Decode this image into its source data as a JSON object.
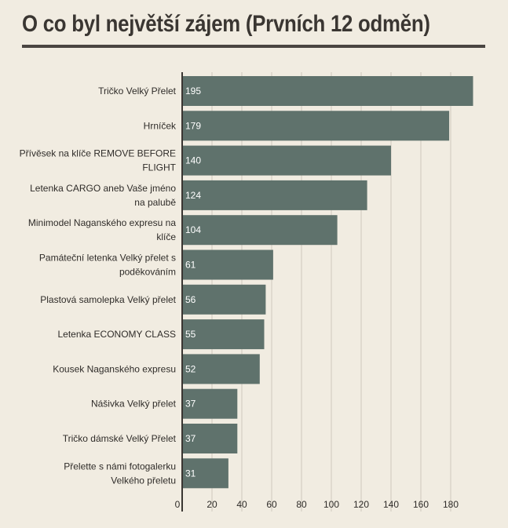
{
  "title": "O co byl největší zájem (Prvních 12 odměn)",
  "colors": {
    "bar": "#5f726c",
    "grid": "#cfc9bd",
    "axis": "#3a3632",
    "background": "#f1ece1"
  },
  "chart_data": {
    "type": "bar",
    "orientation": "horizontal",
    "title": "O co byl největší zájem (Prvních 12 odměn)",
    "categories": [
      "Tričko Velký Přelet",
      "Hrníček",
      "Přívěsek na klíče REMOVE BEFORE FLIGHT",
      "Letenka CARGO aneb Vaše jméno na palubě",
      "Minimodel Naganského expresu na klíče",
      "Památeční letenka Velký přelet s poděkováním",
      "Plastová samolepka Velký přelet",
      "Letenka ECONOMY CLASS",
      "Kousek Naganského expresu",
      "Nášivka Velký přelet",
      "Tričko dámské Velký Přelet",
      "Přelette s námi fotogalerku Velkého přeletu"
    ],
    "category_lines": [
      [
        "Tričko Velký Přelet"
      ],
      [
        "Hrníček"
      ],
      [
        "Přívěsek na klíče REMOVE BEFORE",
        "FLIGHT"
      ],
      [
        "Letenka CARGO aneb Vaše jméno",
        "na palubě"
      ],
      [
        "Minimodel Naganského expresu na",
        "klíče"
      ],
      [
        "Památeční letenka Velký přelet s",
        "poděkováním"
      ],
      [
        "Plastová samolepka Velký přelet"
      ],
      [
        "Letenka ECONOMY CLASS"
      ],
      [
        "Kousek Naganského expresu"
      ],
      [
        "Nášivka Velký přelet"
      ],
      [
        "Tričko dámské Velký Přelet"
      ],
      [
        "Přelette s námi fotogalerku",
        "Velkého přeletu"
      ]
    ],
    "values": [
      195,
      179,
      140,
      124,
      104,
      61,
      56,
      55,
      52,
      37,
      37,
      31
    ],
    "xlim": [
      0,
      200
    ],
    "xticks": [
      0,
      20,
      40,
      60,
      80,
      100,
      120,
      140,
      160,
      180
    ],
    "grid": true,
    "xlabel": "",
    "ylabel": ""
  }
}
